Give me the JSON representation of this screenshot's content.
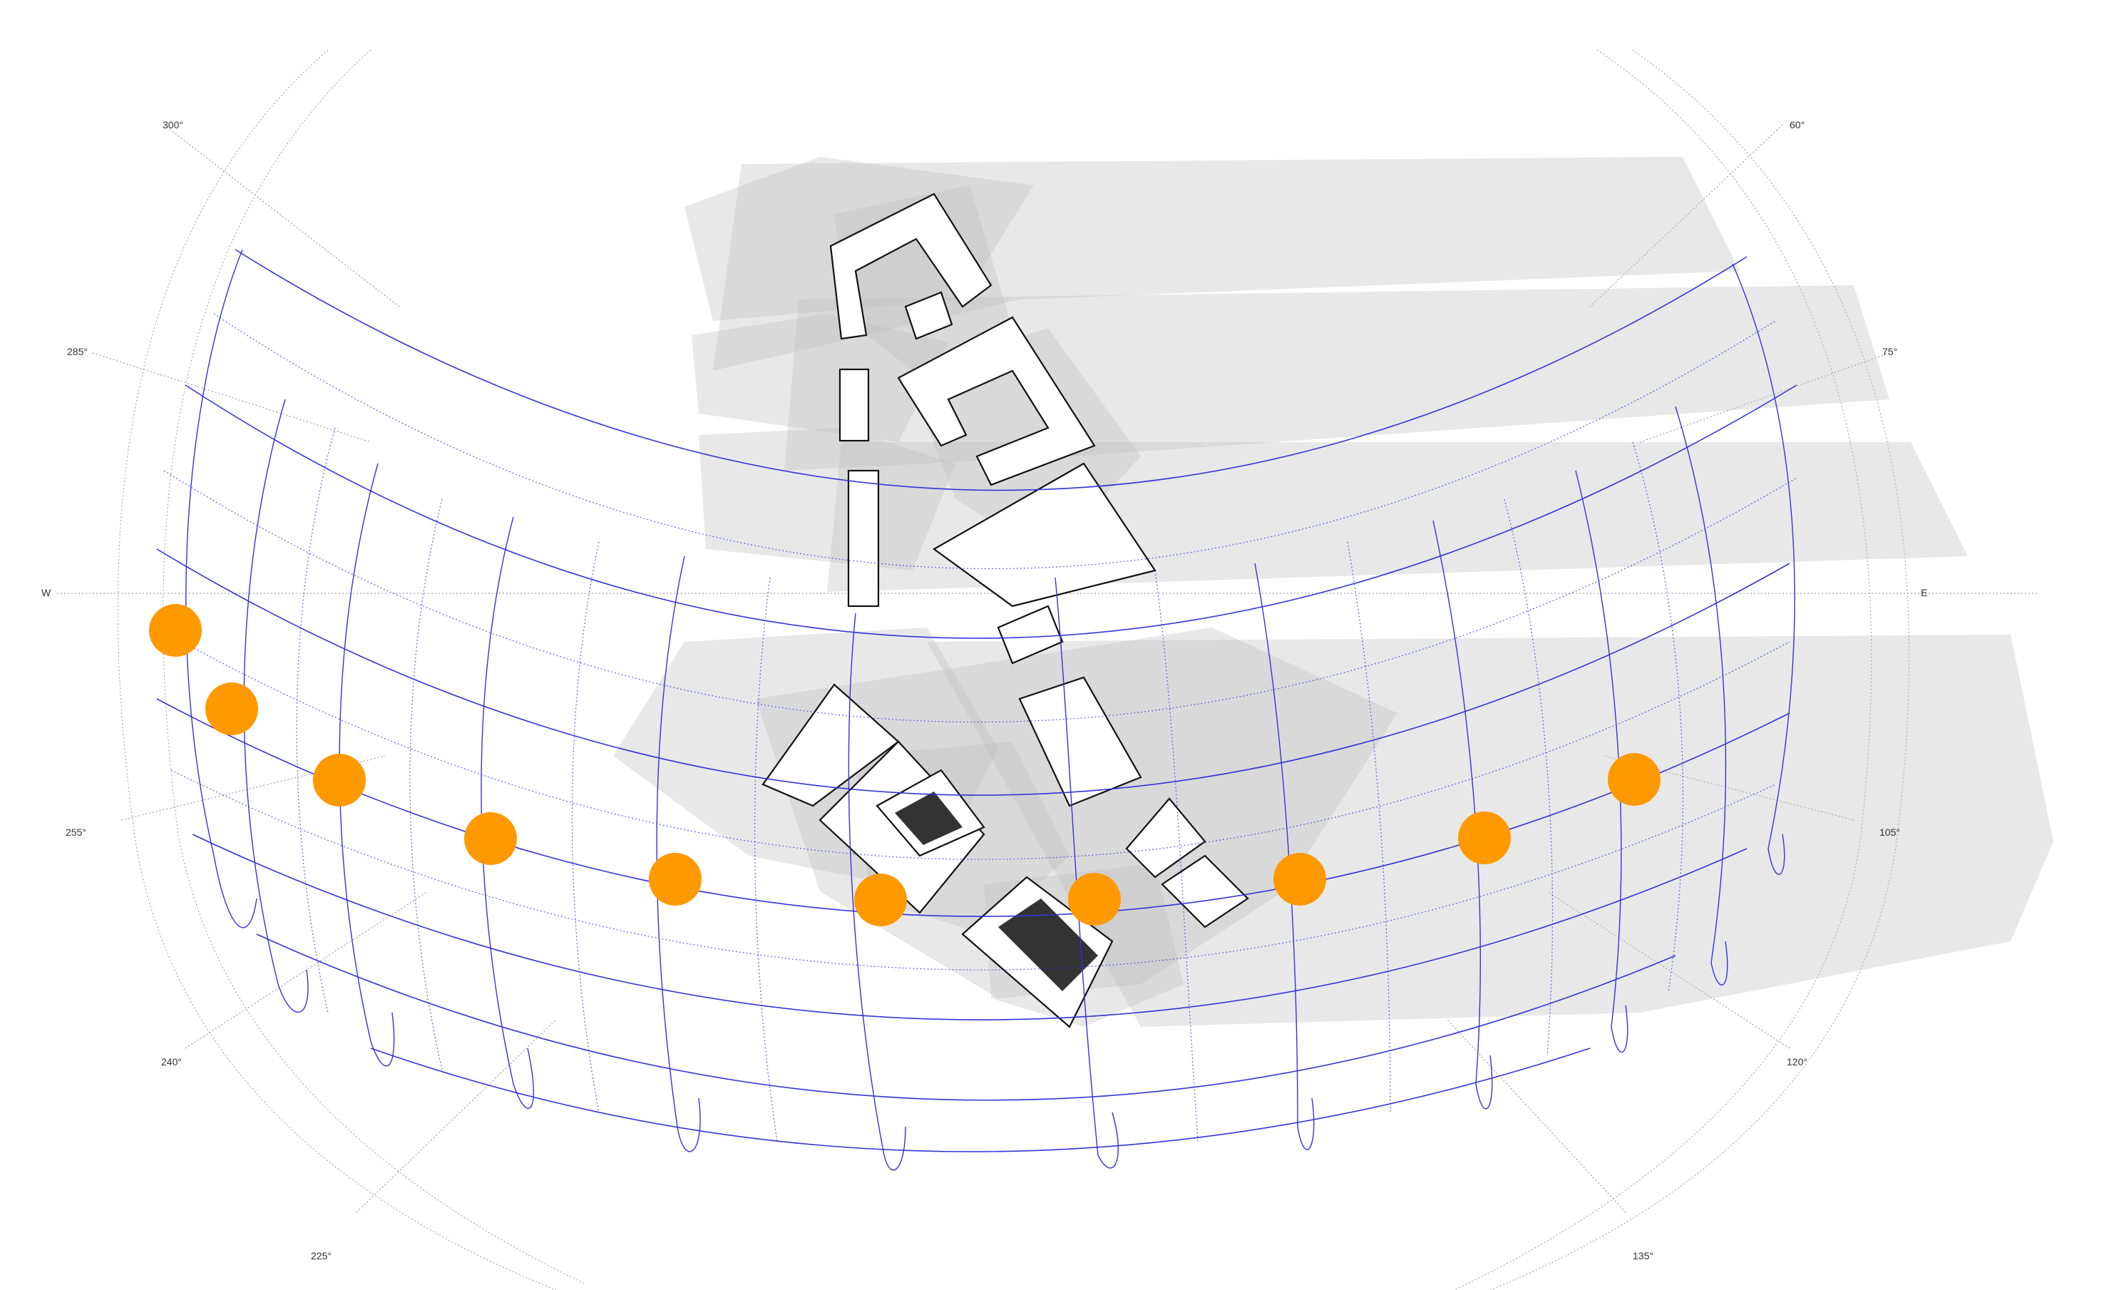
{
  "compass_labels": {
    "deg300": "300°",
    "deg60": "60°",
    "deg285": "285°",
    "deg75": "75°",
    "west": "W",
    "east": "E",
    "deg255": "255°",
    "deg105": "105°",
    "deg240": "240°",
    "deg120": "120°",
    "deg225": "225°",
    "deg135": "135°"
  },
  "colors": {
    "sun_path": "#3434d8",
    "sun_marker": "#ff9900",
    "shadow": "#bdbdbd",
    "building_outline": "#111111"
  },
  "sun_marker_count": 10
}
